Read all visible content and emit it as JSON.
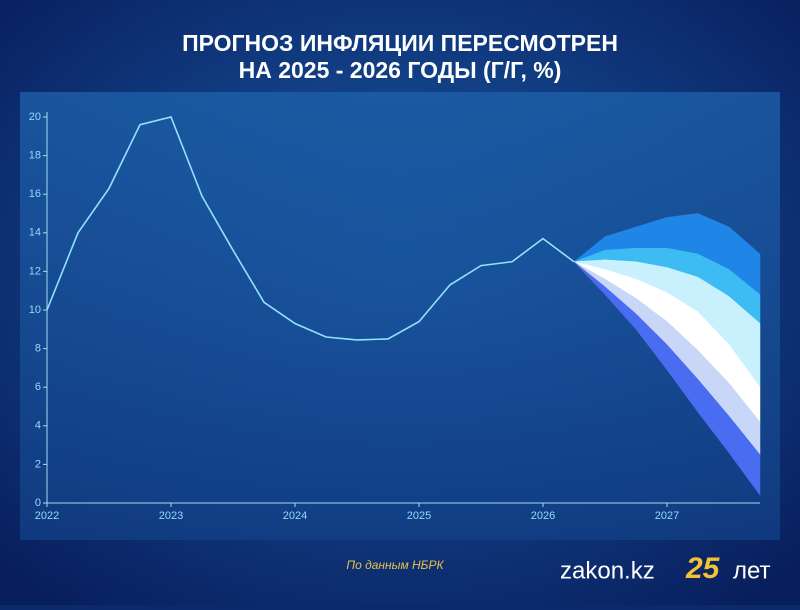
{
  "chart_data": {
    "type": "line",
    "title_lines": [
      "ПРОГНОЗ ИНФЛЯЦИИ ПЕРЕСМОТРЕН",
      "НА 2025 - 2026 ГОДЫ (Г/Г, %)"
    ],
    "x": [
      2022,
      2022.25,
      2022.5,
      2022.75,
      2023,
      2023.25,
      2023.5,
      2023.75,
      2024,
      2024.25,
      2024.5,
      2024.75,
      2025,
      2025.25,
      2025.5,
      2025.75,
      2026,
      2026.25
    ],
    "series": [
      {
        "color": "#8fe3ff",
        "values": [
          10.0,
          14.0,
          16.3,
          19.6,
          20.0,
          15.9,
          13.1,
          10.4,
          9.3,
          8.6,
          8.45,
          8.5,
          9.4,
          11.3,
          12.3,
          12.5,
          13.7,
          12.5
        ]
      }
    ],
    "fan": {
      "x": [
        2026.25,
        2026.5,
        2026.75,
        2027,
        2027.25,
        2027.5,
        2027.75
      ],
      "bounds": [
        [
          12.5,
          13.8,
          14.3,
          14.8,
          15.0,
          14.3,
          12.9
        ],
        [
          12.5,
          13.1,
          13.2,
          13.2,
          12.9,
          12.1,
          10.8
        ],
        [
          12.5,
          12.6,
          12.5,
          12.2,
          11.7,
          10.7,
          9.3
        ],
        [
          12.5,
          12.1,
          11.6,
          10.9,
          9.9,
          8.2,
          6.0
        ],
        [
          12.5,
          11.6,
          10.6,
          9.4,
          7.9,
          6.2,
          4.2
        ],
        [
          12.5,
          11.2,
          9.8,
          8.2,
          6.4,
          4.5,
          2.5
        ],
        [
          12.5,
          10.8,
          9.0,
          6.9,
          4.7,
          2.6,
          0.4
        ]
      ],
      "colors": [
        "#1f86e8",
        "#3cbcf2",
        "#c9f1fd",
        "#ffffff",
        "#c8d6f8",
        "#4a6cf0"
      ]
    },
    "xlim": [
      2022,
      2027.75
    ],
    "xticks": [
      2022,
      2023,
      2024,
      2025,
      2026,
      2027
    ],
    "ylim": [
      0,
      20
    ],
    "yticks": [
      0,
      2,
      4,
      6,
      8,
      10,
      12,
      14,
      16,
      18,
      20
    ],
    "source": "По данным НБРК"
  },
  "branding": {
    "site": "zakon.kz",
    "years": "25",
    "suffix": "лет"
  }
}
